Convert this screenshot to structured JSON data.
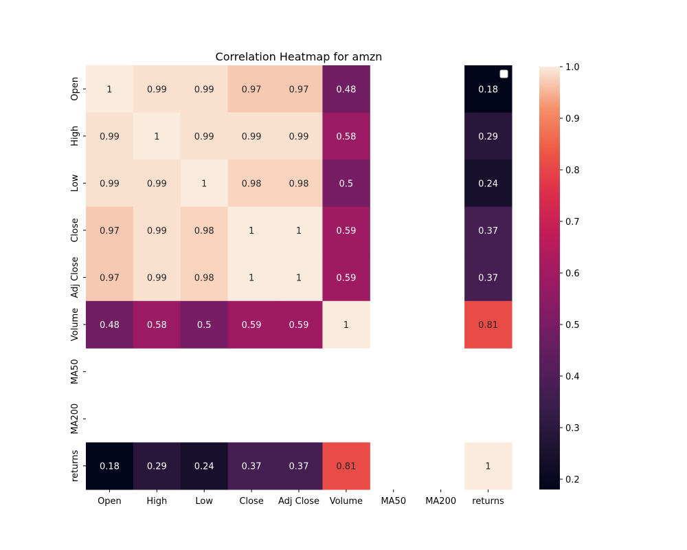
{
  "chart_data": {
    "type": "heatmap",
    "title": "Correlation Heatmap for amzn",
    "xlabel": "",
    "ylabel": "",
    "x_labels": [
      "Open",
      "High",
      "Low",
      "Close",
      "Adj Close",
      "Volume",
      "MA50",
      "MA200",
      "returns"
    ],
    "y_labels": [
      "Open",
      "High",
      "Low",
      "Close",
      "Adj Close",
      "Volume",
      "MA50",
      "MA200",
      "returns"
    ],
    "values": [
      [
        1,
        0.99,
        0.99,
        0.97,
        0.97,
        0.48,
        null,
        null,
        0.18
      ],
      [
        0.99,
        1,
        0.99,
        0.99,
        0.99,
        0.58,
        null,
        null,
        0.29
      ],
      [
        0.99,
        0.99,
        1,
        0.98,
        0.98,
        0.5,
        null,
        null,
        0.24
      ],
      [
        0.97,
        0.99,
        0.98,
        1,
        1,
        0.59,
        null,
        null,
        0.37
      ],
      [
        0.97,
        0.99,
        0.98,
        1,
        1,
        0.59,
        null,
        null,
        0.37
      ],
      [
        0.48,
        0.58,
        0.5,
        0.59,
        0.59,
        1,
        null,
        null,
        0.81
      ],
      [
        null,
        null,
        null,
        null,
        null,
        null,
        null,
        null,
        null
      ],
      [
        null,
        null,
        null,
        null,
        null,
        null,
        null,
        null,
        null
      ],
      [
        0.18,
        0.29,
        0.24,
        0.37,
        0.37,
        0.81,
        null,
        null,
        1
      ]
    ],
    "annotations": true,
    "colorbar": {
      "range": [
        0.18,
        1.0
      ],
      "ticks": [
        "0.2",
        "0.3",
        "0.4",
        "0.5",
        "0.6",
        "0.7",
        "0.8",
        "0.9",
        "1.0"
      ],
      "tick_values": [
        0.2,
        0.3,
        0.4,
        0.5,
        0.6,
        0.7,
        0.8,
        0.9,
        1.0
      ],
      "colormap": "rocket"
    },
    "legend": {
      "placement": "top-right",
      "entries": []
    }
  }
}
